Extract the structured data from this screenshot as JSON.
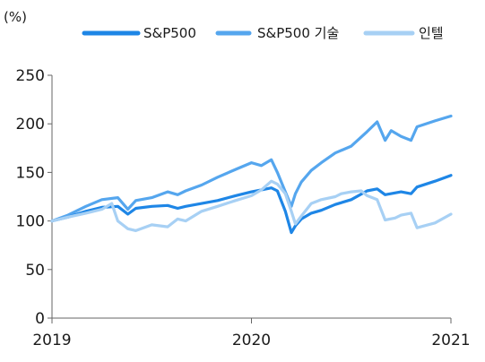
{
  "chart_data": {
    "type": "line",
    "unit_label": "(%)",
    "x_ticks": [
      "2019",
      "2020",
      "2021"
    ],
    "y_ticks": [
      "0",
      "50",
      "100",
      "150",
      "200",
      "250"
    ],
    "ylim": [
      0,
      250
    ],
    "xlim": [
      2019.0,
      2021.0
    ],
    "grid": false,
    "legend_position": "top",
    "series": [
      {
        "name": "S&P500",
        "color": "#1e86e6",
        "x": [
          2019.0,
          2019.08,
          2019.17,
          2019.25,
          2019.33,
          2019.38,
          2019.42,
          2019.5,
          2019.58,
          2019.63,
          2019.67,
          2019.75,
          2019.83,
          2019.92,
          2020.0,
          2020.05,
          2020.1,
          2020.13,
          2020.17,
          2020.2,
          2020.22,
          2020.25,
          2020.3,
          2020.35,
          2020.42,
          2020.5,
          2020.58,
          2020.63,
          2020.67,
          2020.75,
          2020.8,
          2020.83,
          2020.92,
          2021.0
        ],
        "y": [
          100,
          104,
          110,
          114,
          115,
          107,
          113,
          115,
          116,
          113,
          115,
          118,
          121,
          126,
          130,
          132,
          134,
          131,
          110,
          88,
          95,
          102,
          108,
          111,
          117,
          122,
          131,
          133,
          127,
          130,
          128,
          135,
          141,
          147
        ]
      },
      {
        "name": "S&P500 기술",
        "color": "#55a6ee",
        "x": [
          2019.0,
          2019.08,
          2019.17,
          2019.25,
          2019.33,
          2019.38,
          2019.42,
          2019.5,
          2019.58,
          2019.63,
          2019.67,
          2019.75,
          2019.83,
          2019.92,
          2020.0,
          2020.05,
          2020.1,
          2020.13,
          2020.17,
          2020.2,
          2020.22,
          2020.25,
          2020.3,
          2020.35,
          2020.42,
          2020.5,
          2020.58,
          2020.63,
          2020.67,
          2020.7,
          2020.75,
          2020.8,
          2020.83,
          2020.92,
          2021.0
        ],
        "y": [
          100,
          106,
          115,
          122,
          124,
          112,
          121,
          124,
          130,
          127,
          131,
          137,
          145,
          153,
          160,
          157,
          163,
          150,
          130,
          115,
          128,
          140,
          152,
          160,
          170,
          177,
          192,
          202,
          183,
          193,
          187,
          183,
          197,
          203,
          208
        ]
      },
      {
        "name": "인텔",
        "color": "#a7d0f4",
        "x": [
          2019.0,
          2019.08,
          2019.17,
          2019.25,
          2019.3,
          2019.33,
          2019.38,
          2019.42,
          2019.5,
          2019.58,
          2019.63,
          2019.67,
          2019.75,
          2019.83,
          2019.92,
          2020.0,
          2020.05,
          2020.1,
          2020.13,
          2020.17,
          2020.2,
          2020.22,
          2020.25,
          2020.3,
          2020.35,
          2020.42,
          2020.45,
          2020.5,
          2020.55,
          2020.58,
          2020.63,
          2020.67,
          2020.72,
          2020.75,
          2020.8,
          2020.83,
          2020.92,
          2021.0
        ],
        "y": [
          100,
          104,
          108,
          112,
          118,
          100,
          92,
          90,
          96,
          94,
          102,
          100,
          110,
          115,
          121,
          126,
          132,
          141,
          138,
          128,
          110,
          97,
          105,
          118,
          122,
          125,
          128,
          130,
          131,
          126,
          122,
          101,
          103,
          106,
          108,
          93,
          98,
          107
        ]
      }
    ]
  }
}
